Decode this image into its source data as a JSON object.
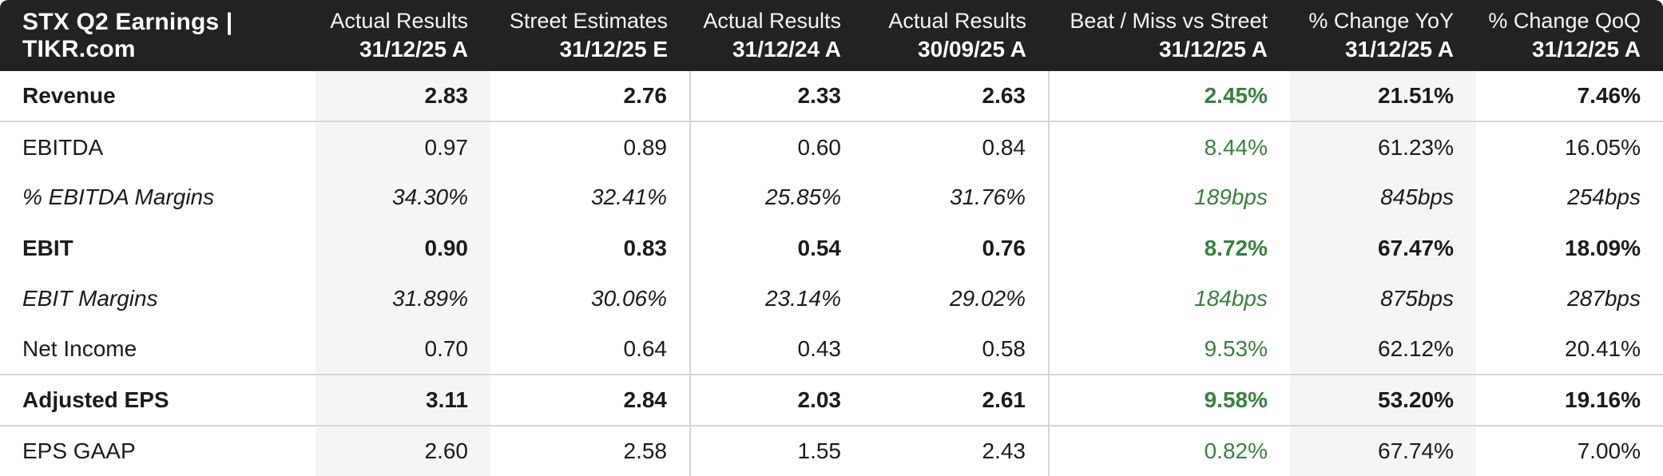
{
  "title": "STX Q2 Earnings | TIKR.com",
  "colors": {
    "header_bg": "#222225",
    "beat_miss_green": "#37823c",
    "shaded_column_bg": "#f5f5f5",
    "grid_line": "#d6d6d6",
    "body_text": "#1b1b1d"
  },
  "chart_data": {
    "type": "table",
    "title": "STX Q2 Earnings | TIKR.com",
    "columns": [
      {
        "label": "Actual Results",
        "period": "31/12/25 A",
        "shaded": true,
        "divider": false,
        "green": false
      },
      {
        "label": "Street Estimates",
        "period": "31/12/25 E",
        "shaded": false,
        "divider": false,
        "green": false
      },
      {
        "label": "Actual Results",
        "period": "31/12/24 A",
        "shaded": false,
        "divider": true,
        "green": false
      },
      {
        "label": "Actual Results",
        "period": "30/09/25 A",
        "shaded": false,
        "divider": false,
        "green": false
      },
      {
        "label": "Beat / Miss vs Street",
        "period": "31/12/25 A",
        "shaded": false,
        "divider": true,
        "green": true
      },
      {
        "label": "% Change YoY",
        "period": "31/12/25 A",
        "shaded": true,
        "divider": false,
        "green": false
      },
      {
        "label": "% Change QoQ",
        "period": "31/12/25 A",
        "shaded": false,
        "divider": false,
        "green": false
      }
    ],
    "rows": [
      {
        "label": "Revenue",
        "style": "bold",
        "group_start": false,
        "values": [
          "2.83",
          "2.76",
          "2.33",
          "2.63",
          "2.45%",
          "21.51%",
          "7.46%"
        ]
      },
      {
        "label": "EBITDA",
        "style": "regular",
        "group_start": true,
        "values": [
          "0.97",
          "0.89",
          "0.60",
          "0.84",
          "8.44%",
          "61.23%",
          "16.05%"
        ]
      },
      {
        "label": "% EBITDA Margins",
        "style": "italic",
        "group_start": false,
        "values": [
          "34.30%",
          "32.41%",
          "25.85%",
          "31.76%",
          "189bps",
          "845bps",
          "254bps"
        ]
      },
      {
        "label": "EBIT",
        "style": "bold",
        "group_start": false,
        "values": [
          "0.90",
          "0.83",
          "0.54",
          "0.76",
          "8.72%",
          "67.47%",
          "18.09%"
        ]
      },
      {
        "label": "EBIT Margins",
        "style": "italic",
        "group_start": false,
        "values": [
          "31.89%",
          "30.06%",
          "23.14%",
          "29.02%",
          "184bps",
          "875bps",
          "287bps"
        ]
      },
      {
        "label": "Net Income",
        "style": "regular",
        "group_start": false,
        "values": [
          "0.70",
          "0.64",
          "0.43",
          "0.58",
          "9.53%",
          "62.12%",
          "20.41%"
        ]
      },
      {
        "label": "Adjusted EPS",
        "style": "bold",
        "group_start": true,
        "values": [
          "3.11",
          "2.84",
          "2.03",
          "2.61",
          "9.58%",
          "53.20%",
          "19.16%"
        ]
      },
      {
        "label": "EPS GAAP",
        "style": "regular",
        "group_start": true,
        "values": [
          "2.60",
          "2.58",
          "1.55",
          "2.43",
          "0.82%",
          "67.74%",
          "7.00%"
        ]
      }
    ]
  }
}
